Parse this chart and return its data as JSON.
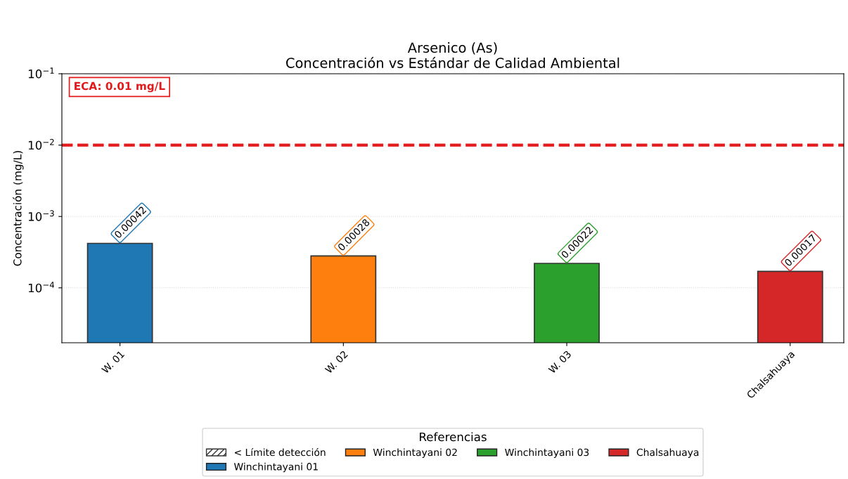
{
  "chart_data": {
    "type": "bar",
    "title": "Arsenico (As)",
    "subtitle": "Concentración vs Estándar de Calidad Ambiental",
    "ylabel": "Concentración (mg/L)",
    "legend_title": "Referencias",
    "categories": [
      "W. 01",
      "W. 02",
      "W. 03",
      "Chalsahuaya"
    ],
    "series": [
      {
        "name": "< Límite detección",
        "color": "#333333",
        "values": [
          null,
          null,
          null,
          null
        ]
      },
      {
        "name": "Winchintayani 01",
        "color": "#1f77b4",
        "values": [
          0.00042,
          null,
          null,
          null
        ]
      },
      {
        "name": "Winchintayani 02",
        "color": "#ff7f0e",
        "values": [
          null,
          0.00028,
          null,
          null
        ]
      },
      {
        "name": "Winchintayani 03",
        "color": "#2ca02c",
        "values": [
          null,
          null,
          0.00022,
          null
        ]
      },
      {
        "name": "Chalsahuaya",
        "color": "#d62728",
        "values": [
          null,
          null,
          null,
          0.00017
        ]
      }
    ],
    "log": true,
    "ylim": [
      1.7e-05,
      0.1
    ],
    "yticks": [
      {
        "value": 0.1,
        "label": "10$^{−1}$"
      },
      {
        "value": 0.01,
        "label": "10$^{−2}$"
      },
      {
        "value": 0.001,
        "label": "10$^{−3}$"
      },
      {
        "value": 0.0001,
        "label": "10$^{−4}$"
      }
    ],
    "ref_lines": [
      {
        "axis": "y",
        "value": 0.01,
        "label": "ECA: 0.01 mg/L",
        "color": "#e31a1c",
        "line_style": "dashed"
      }
    ],
    "data_labels": true,
    "grid": "y",
    "legend": "bottom"
  }
}
